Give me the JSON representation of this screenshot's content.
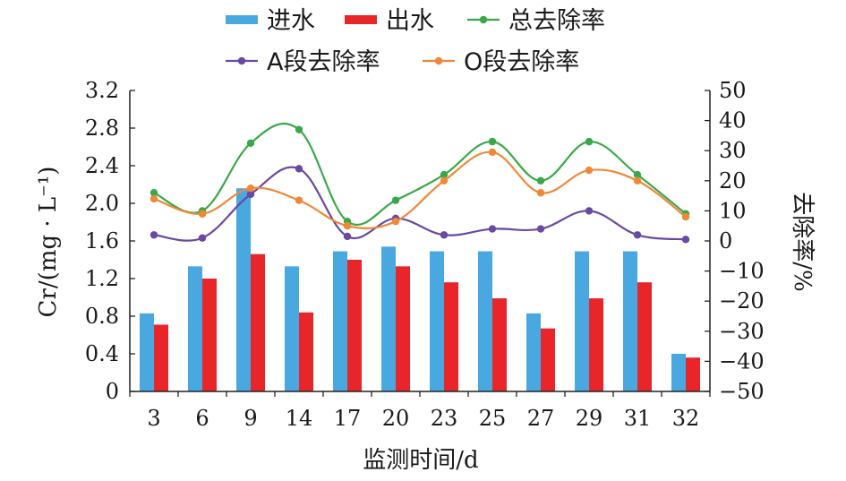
{
  "chart_data": {
    "type": "bar",
    "xlabel": "监测时间/d",
    "ylabel": "Cr/(mg · L⁻¹)",
    "y2label": "去除率/%",
    "categories": [
      "3",
      "6",
      "9",
      "14",
      "17",
      "20",
      "23",
      "25",
      "27",
      "29",
      "31",
      "32"
    ],
    "ylim": [
      0,
      3.2
    ],
    "yticks": [
      "0",
      "0.4",
      "0.8",
      "1.2",
      "1.6",
      "2.0",
      "2.4",
      "2.8",
      "3.2"
    ],
    "y2lim": [
      -50,
      50
    ],
    "y2ticks": [
      "−50",
      "−40",
      "−30",
      "−20",
      "−10",
      "0",
      "10",
      "20",
      "30",
      "40",
      "50"
    ],
    "bar_series": [
      {
        "name": "进水",
        "color": "#4aa8e0",
        "values": [
          0.83,
          1.33,
          2.16,
          1.33,
          1.49,
          1.54,
          1.49,
          1.49,
          0.83,
          1.49,
          1.49,
          0.4
        ]
      },
      {
        "name": "出水",
        "color": "#e8262a",
        "values": [
          0.71,
          1.2,
          1.46,
          0.84,
          1.4,
          1.33,
          1.16,
          0.99,
          0.67,
          0.99,
          1.16,
          0.36
        ]
      }
    ],
    "line_series": [
      {
        "name": "总去除率",
        "color": "#3aa84a",
        "axis": "right",
        "values": [
          16,
          10,
          32.5,
          37,
          6.5,
          13.5,
          22,
          33,
          20,
          33,
          22,
          9
        ]
      },
      {
        "name": "A段去除率",
        "color": "#6a4aa0",
        "axis": "right",
        "values": [
          2,
          1,
          15.5,
          24,
          1.5,
          7.5,
          2,
          4,
          4,
          10,
          2,
          0.5
        ]
      },
      {
        "name": "O段去除率",
        "color": "#f0883a",
        "axis": "right",
        "values": [
          14,
          9,
          17.5,
          13.5,
          5,
          6.5,
          20,
          29.5,
          16,
          23.5,
          20,
          8
        ]
      }
    ],
    "legend": {
      "position": "top",
      "row1": [
        "进水",
        "出水",
        "总去除率"
      ],
      "row2": [
        "A段去除率",
        "O段去除率"
      ]
    },
    "grid": false
  }
}
